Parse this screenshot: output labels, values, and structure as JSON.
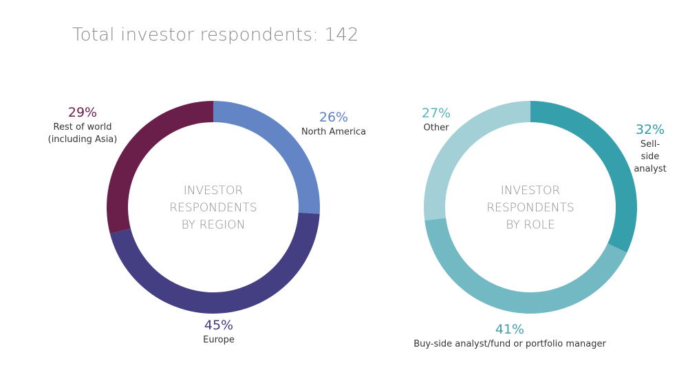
{
  "page": {
    "title": "Total investor respondents: 142"
  },
  "chart_data": [
    {
      "type": "pie",
      "variant": "donut",
      "center_label": [
        "INVESTOR",
        "RESPONDENTS",
        "BY REGION"
      ],
      "slices": [
        {
          "name": "North America",
          "name_lines": [
            "North America"
          ],
          "value": 26,
          "value_label": "26%",
          "color": "#6385c6",
          "label_color": "#5b7fc2"
        },
        {
          "name": "Europe",
          "name_lines": [
            "Europe"
          ],
          "value": 45,
          "value_label": "45%",
          "color": "#443e82",
          "label_color": "#3f3a7c"
        },
        {
          "name": "Rest of world (including Asia)",
          "name_lines": [
            "Rest of world",
            "(including Asia)"
          ],
          "value": 29,
          "value_label": "29%",
          "color": "#6a1e4a",
          "label_color": "#6a1e4a"
        }
      ]
    },
    {
      "type": "pie",
      "variant": "donut",
      "center_label": [
        "INVESTOR",
        "RESPONDENTS",
        "BY ROLE"
      ],
      "slices": [
        {
          "name": "Sell-side analyst",
          "name_lines": [
            "Sell-",
            "side",
            "analyst"
          ],
          "value": 32,
          "value_label": "32%",
          "color": "#35a0ab",
          "label_color": "#2e9aa6"
        },
        {
          "name": "Buy-side analyst/fund or portfolio manager",
          "name_lines": [
            "Buy-side analyst/fund or portfolio manager"
          ],
          "value": 41,
          "value_label": "41%",
          "color": "#72b9c3",
          "label_color": "#3f9fa9"
        },
        {
          "name": "Other",
          "name_lines": [
            "Other"
          ],
          "value": 27,
          "value_label": "27%",
          "color": "#a3d0d6",
          "label_color": "#5ab3bd"
        }
      ]
    }
  ]
}
